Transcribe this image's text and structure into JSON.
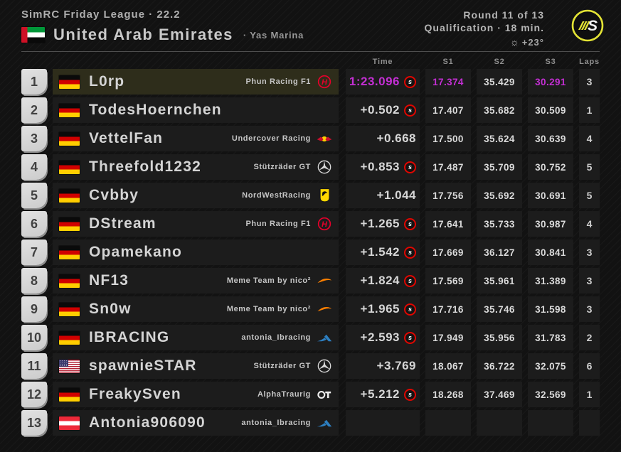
{
  "header": {
    "league": "SimRC Friday League · 22.2",
    "country": "United Arab Emirates",
    "track": "· Yas Marina",
    "round": "Round 11 of 13",
    "session": "Qualification · 18 min.",
    "temperature": "+23°",
    "logo": "simrc-logo",
    "accent_yellow": "#e3e335"
  },
  "columns": {
    "time": "Time",
    "s1": "S1",
    "s2": "S2",
    "s3": "S3",
    "laps": "Laps"
  },
  "colors": {
    "fastest_purple": "#c42fd4",
    "tyre_soft_ring": "#e10600",
    "leader_row_bg": "#2e2d1b"
  },
  "rows": [
    {
      "pos": "1",
      "flag": "de",
      "name": "L0rp",
      "team": "Phun Racing F1",
      "team_logo": "haas",
      "time": "1:23.096",
      "tyre": "s",
      "s1": "17.374",
      "s2": "35.429",
      "s3": "30.291",
      "laps": "3",
      "leader": true,
      "purple": {
        "time": true,
        "s1": true,
        "s2": false,
        "s3": true
      }
    },
    {
      "pos": "2",
      "flag": "de",
      "name": "TodesHoernchen",
      "team": "",
      "team_logo": "",
      "time": "+0.502",
      "tyre": "s",
      "s1": "17.407",
      "s2": "35.682",
      "s3": "30.509",
      "laps": "1"
    },
    {
      "pos": "3",
      "flag": "de",
      "name": "VettelFan",
      "team": "Undercover Racing",
      "team_logo": "redbull",
      "time": "+0.668",
      "tyre": "",
      "s1": "17.500",
      "s2": "35.624",
      "s3": "30.639",
      "laps": "4"
    },
    {
      "pos": "4",
      "flag": "de",
      "name": "Threefold1232",
      "team": "Stützräder GT",
      "team_logo": "mercedes",
      "time": "+0.853",
      "tyre": "s",
      "s1": "17.487",
      "s2": "35.709",
      "s3": "30.752",
      "laps": "5"
    },
    {
      "pos": "5",
      "flag": "de",
      "name": "Cvbby",
      "team": "NordWestRacing",
      "team_logo": "ferrari",
      "time": "+1.044",
      "tyre": "",
      "s1": "17.756",
      "s2": "35.692",
      "s3": "30.691",
      "laps": "5"
    },
    {
      "pos": "6",
      "flag": "de",
      "name": "DStream",
      "team": "Phun Racing F1",
      "team_logo": "haas",
      "time": "+1.265",
      "tyre": "s",
      "s1": "17.641",
      "s2": "35.733",
      "s3": "30.987",
      "laps": "4"
    },
    {
      "pos": "7",
      "flag": "de",
      "name": "Opamekano",
      "team": "",
      "team_logo": "",
      "time": "+1.542",
      "tyre": "s",
      "s1": "17.669",
      "s2": "36.127",
      "s3": "30.841",
      "laps": "3"
    },
    {
      "pos": "8",
      "flag": "de",
      "name": "NF13",
      "team": "Meme Team by nico²",
      "team_logo": "mclaren",
      "time": "+1.824",
      "tyre": "s",
      "s1": "17.569",
      "s2": "35.961",
      "s3": "31.389",
      "laps": "3"
    },
    {
      "pos": "9",
      "flag": "de",
      "name": "Sn0w",
      "team": "Meme Team by nico²",
      "team_logo": "mclaren",
      "time": "+1.965",
      "tyre": "s",
      "s1": "17.716",
      "s2": "35.746",
      "s3": "31.598",
      "laps": "3"
    },
    {
      "pos": "10",
      "flag": "de",
      "name": "IBRACING",
      "team": "antonia_Ibracing",
      "team_logo": "alpine",
      "time": "+2.593",
      "tyre": "s",
      "s1": "17.949",
      "s2": "35.956",
      "s3": "31.783",
      "laps": "2"
    },
    {
      "pos": "11",
      "flag": "us",
      "name": "spawnieSTAR",
      "team": "Stützräder GT",
      "team_logo": "mercedes",
      "time": "+3.769",
      "tyre": "",
      "s1": "18.067",
      "s2": "36.722",
      "s3": "32.075",
      "laps": "6"
    },
    {
      "pos": "12",
      "flag": "de",
      "name": "FreakySven",
      "team": "AlphaTraurig",
      "team_logo": "alphatauri",
      "time": "+5.212",
      "tyre": "s",
      "s1": "18.268",
      "s2": "37.469",
      "s3": "32.569",
      "laps": "1"
    },
    {
      "pos": "13",
      "flag": "at",
      "name": "Antonia906090",
      "team": "antonia_Ibracing",
      "team_logo": "alpine",
      "time": "",
      "tyre": "",
      "s1": "",
      "s2": "",
      "s3": "",
      "laps": ""
    }
  ]
}
